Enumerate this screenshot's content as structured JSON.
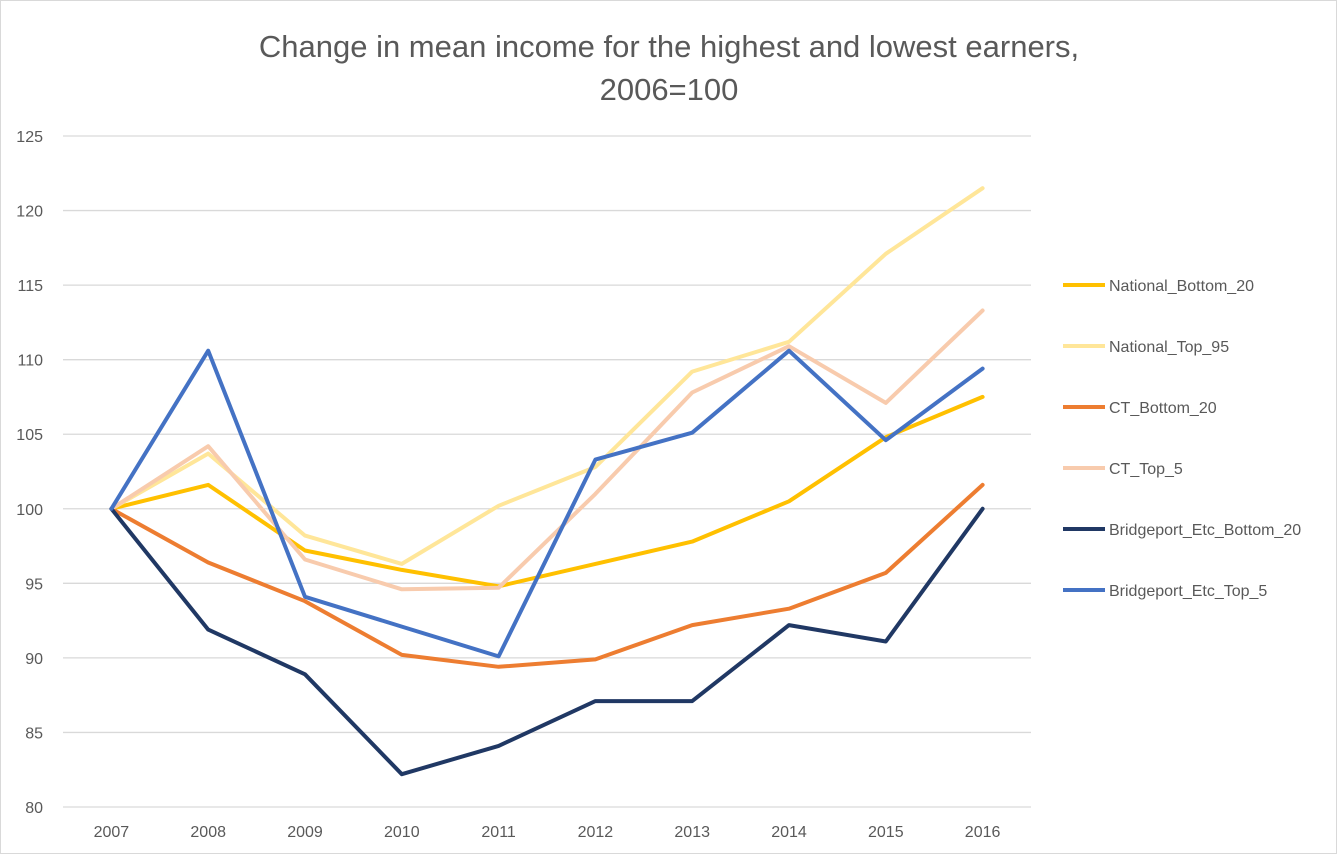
{
  "chart_data": {
    "type": "line",
    "title": [
      "Change in mean income for the highest and lowest earners,",
      "2006=100"
    ],
    "xlabel": "",
    "ylabel": "",
    "x": [
      "2007",
      "2008",
      "2009",
      "2010",
      "2011",
      "2012",
      "2013",
      "2014",
      "2015",
      "2016"
    ],
    "ylim": [
      80,
      125
    ],
    "yticks": [
      80,
      85,
      90,
      95,
      100,
      105,
      110,
      115,
      120,
      125
    ],
    "grid": true,
    "legend_position": "right",
    "series": [
      {
        "name": "National_Bottom_20",
        "color": "#FFC000",
        "values": [
          100,
          101.6,
          97.2,
          95.9,
          94.8,
          96.3,
          97.8,
          100.5,
          104.8,
          107.5
        ]
      },
      {
        "name": "National_Top_95",
        "color": "#FFE699",
        "values": [
          100,
          103.7,
          98.2,
          96.3,
          100.2,
          102.8,
          109.2,
          111.2,
          117.1,
          121.5
        ]
      },
      {
        "name": "CT_Bottom_20",
        "color": "#ED7D31",
        "values": [
          100,
          96.4,
          93.8,
          90.2,
          89.4,
          89.9,
          92.2,
          93.3,
          95.7,
          101.6
        ]
      },
      {
        "name": "CT_Top_5",
        "color": "#F8CBAD",
        "values": [
          100,
          104.2,
          96.6,
          94.6,
          94.7,
          101.0,
          107.8,
          110.9,
          107.1,
          113.3
        ]
      },
      {
        "name": "Bridgeport_Etc_Bottom_20",
        "color": "#203864",
        "values": [
          100,
          91.9,
          88.9,
          82.2,
          84.1,
          87.1,
          87.1,
          92.2,
          91.1,
          100.0
        ]
      },
      {
        "name": "Bridgeport_Etc_Top_5",
        "color": "#4472C4",
        "values": [
          100,
          110.6,
          94.1,
          92.1,
          90.1,
          103.3,
          105.1,
          110.6,
          104.6,
          109.4
        ]
      }
    ]
  }
}
